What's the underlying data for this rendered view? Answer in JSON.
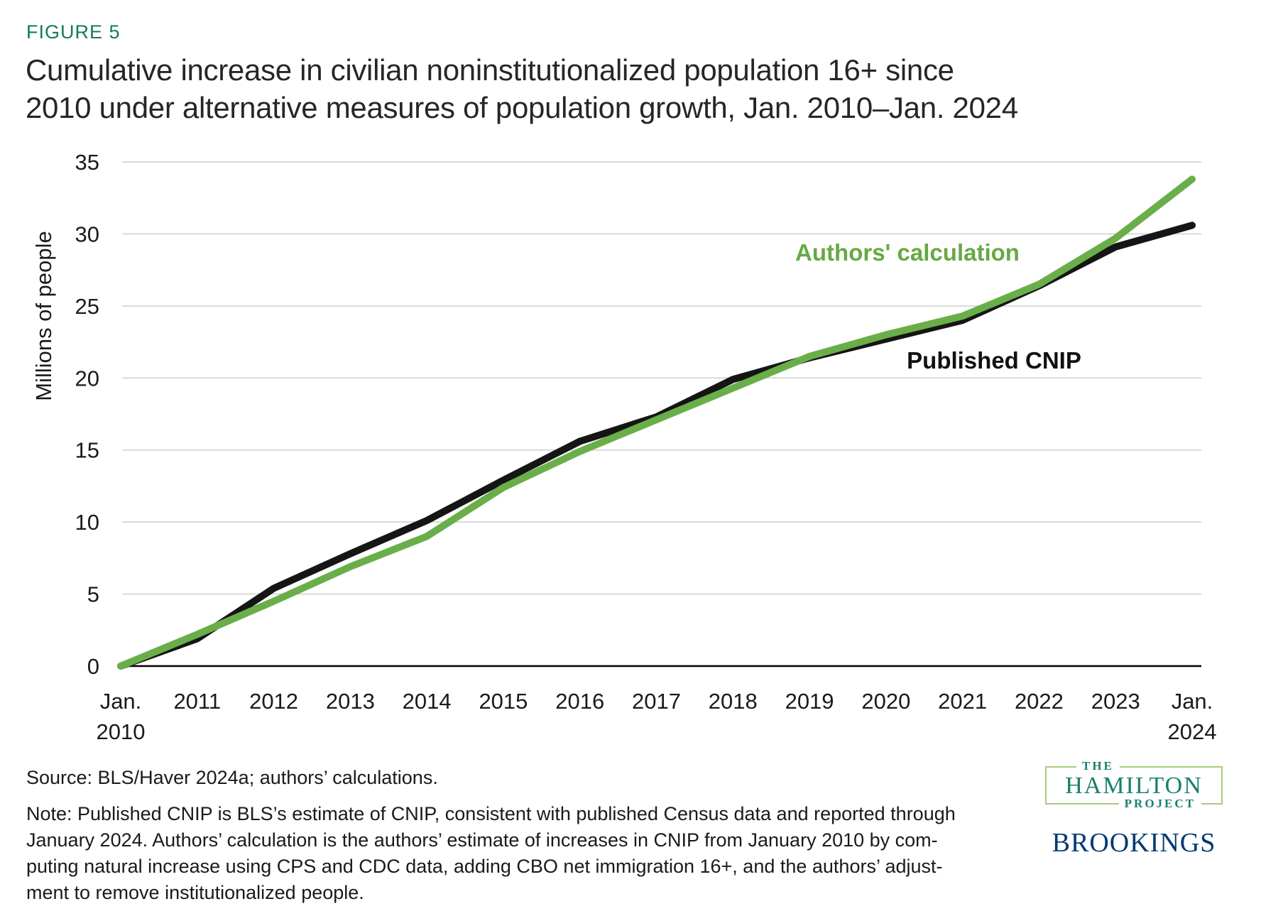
{
  "figure_label": "FIGURE 5",
  "title": "Cumulative increase in civilian noninstitutionalized population 16+ since\n2010 under alternative measures of population growth, Jan. 2010–Jan. 2024",
  "chart_data": {
    "type": "line",
    "ylabel": "Millions of people",
    "ylim": [
      0,
      35
    ],
    "yticks": [
      0,
      5,
      10,
      15,
      20,
      25,
      30,
      35
    ],
    "grid": "horizontal",
    "legend_position": "inline-annotations",
    "x_labels": [
      "Jan.\n2010",
      "2011",
      "2012",
      "2013",
      "2014",
      "2015",
      "2016",
      "2017",
      "2018",
      "2019",
      "2020",
      "2021",
      "2022",
      "2023",
      "Jan.\n2024"
    ],
    "series": [
      {
        "name": "Published CNIP",
        "color": "#151515",
        "values": [
          0,
          1.9,
          5.4,
          7.8,
          10.1,
          12.9,
          15.6,
          17.3,
          19.9,
          21.4,
          22.7,
          24.0,
          26.4,
          29.1,
          30.6
        ]
      },
      {
        "name": "Authors' calculation",
        "color": "#6aae49",
        "values": [
          0,
          2.2,
          4.5,
          6.9,
          9.0,
          12.4,
          14.9,
          17.1,
          19.3,
          21.5,
          23.0,
          24.3,
          26.5,
          29.7,
          33.8
        ]
      }
    ]
  },
  "source": "Source: BLS/Haver 2024a; authors’ calculations.",
  "note": "Note: Published CNIP is BLS’s estimate of CNIP, consistent with published Census data and reported through\nJanuary 2024. Authors’ calculation is the authors’ estimate of increases in CNIP from January 2010 by com-\nputing natural increase using CPS and CDC data, adding CBO net immigration 16+, and the authors’ adjust-\nment to remove institutionalized people.",
  "logos": {
    "hamilton_the": "THE",
    "hamilton_main": "HAMILTON",
    "hamilton_project": "PROJECT",
    "brookings": "BROOKINGS"
  }
}
